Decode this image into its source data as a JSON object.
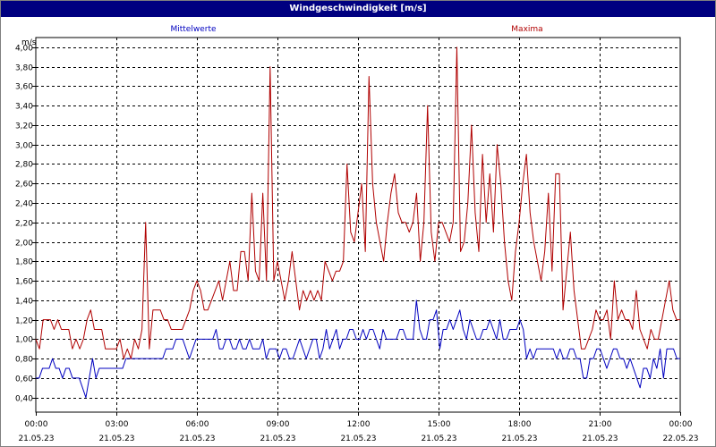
{
  "window": {
    "title": "Windgeschwindigkeit [m/s]"
  },
  "chart_data": {
    "type": "line",
    "title": "Windgeschwindigkeit [m/s]",
    "ylabel": "m/s",
    "ylim": [
      0.25,
      4.1
    ],
    "yticks": [
      "4,00",
      "3,80",
      "3,60",
      "3,40",
      "3,20",
      "3,00",
      "2,80",
      "2,60",
      "2,40",
      "2,20",
      "2,00",
      "1,80",
      "1,60",
      "1,40",
      "1,20",
      "1,00",
      "0,80",
      "0,60",
      "0,40"
    ],
    "xticks": [
      {
        "time": "00:00",
        "date": "21.05.23"
      },
      {
        "time": "03:00",
        "date": "21.05.23"
      },
      {
        "time": "06:00",
        "date": "21.05.23"
      },
      {
        "time": "09:00",
        "date": "21.05.23"
      },
      {
        "time": "12:00",
        "date": "21.05.23"
      },
      {
        "time": "15:00",
        "date": "21.05.23"
      },
      {
        "time": "18:00",
        "date": "21.05.23"
      },
      {
        "time": "21:00",
        "date": "21.05.23"
      },
      {
        "time": "00:00",
        "date": "22.05.23"
      }
    ],
    "grid": true,
    "legend_position": "top",
    "series": [
      {
        "name": "Mittelwerte",
        "color": "#0000c0",
        "values": [
          0.6,
          0.6,
          0.7,
          0.7,
          0.7,
          0.8,
          0.7,
          0.7,
          0.6,
          0.7,
          0.7,
          0.6,
          0.6,
          0.6,
          0.5,
          0.4,
          0.6,
          0.8,
          0.6,
          0.7,
          0.7,
          0.7,
          0.7,
          0.7,
          0.7,
          0.7,
          0.7,
          0.8,
          0.8,
          0.8,
          0.8,
          0.8,
          0.8,
          0.8,
          0.8,
          0.8,
          0.8,
          0.8,
          0.8,
          0.9,
          0.9,
          0.9,
          1.0,
          1.0,
          1.0,
          0.9,
          0.8,
          0.9,
          1.0,
          1.0,
          1.0,
          1.0,
          1.0,
          1.0,
          1.1,
          0.9,
          0.9,
          1.0,
          1.0,
          0.9,
          0.9,
          1.0,
          0.9,
          0.9,
          1.0,
          0.9,
          0.9,
          0.9,
          1.0,
          0.8,
          0.9,
          0.9,
          0.9,
          0.8,
          0.9,
          0.9,
          0.8,
          0.8,
          0.9,
          1.0,
          0.9,
          0.8,
          0.9,
          1.0,
          1.0,
          0.8,
          0.9,
          1.1,
          0.9,
          1.0,
          1.1,
          0.9,
          1.0,
          1.0,
          1.1,
          1.1,
          1.0,
          1.0,
          1.1,
          1.0,
          1.1,
          1.1,
          1.0,
          0.9,
          1.1,
          1.0,
          1.0,
          1.0,
          1.0,
          1.1,
          1.1,
          1.0,
          1.0,
          1.0,
          1.4,
          1.1,
          1.0,
          1.0,
          1.2,
          1.2,
          1.3,
          0.9,
          1.1,
          1.1,
          1.2,
          1.1,
          1.2,
          1.3,
          1.1,
          1.0,
          1.2,
          1.1,
          1.0,
          1.0,
          1.1,
          1.1,
          1.2,
          1.1,
          1.0,
          1.2,
          1.0,
          1.0,
          1.1,
          1.1,
          1.1,
          1.2,
          1.1,
          0.8,
          0.9,
          0.8,
          0.9,
          0.9,
          0.9,
          0.9,
          0.9,
          0.9,
          0.8,
          0.9,
          0.8,
          0.8,
          0.9,
          0.9,
          0.8,
          0.8,
          0.6,
          0.6,
          0.8,
          0.8,
          0.9,
          0.9,
          0.8,
          0.7,
          0.8,
          0.9,
          0.9,
          0.8,
          0.8,
          0.7,
          0.8,
          0.7,
          0.6,
          0.5,
          0.7,
          0.7,
          0.6,
          0.8,
          0.7,
          0.9,
          0.6,
          0.9,
          0.9,
          0.9,
          0.8,
          0.8
        ]
      },
      {
        "name": "Maxima",
        "color": "#b00000",
        "values": [
          1.0,
          0.9,
          1.2,
          1.2,
          1.2,
          1.1,
          1.2,
          1.1,
          1.1,
          1.1,
          0.9,
          1.0,
          0.9,
          1.0,
          1.2,
          1.3,
          1.1,
          1.1,
          1.1,
          0.9,
          0.9,
          0.9,
          0.9,
          1.0,
          0.8,
          0.9,
          0.8,
          1.0,
          0.9,
          1.1,
          2.2,
          0.9,
          1.3,
          1.3,
          1.3,
          1.2,
          1.2,
          1.1,
          1.1,
          1.1,
          1.1,
          1.2,
          1.3,
          1.5,
          1.6,
          1.5,
          1.3,
          1.3,
          1.4,
          1.5,
          1.6,
          1.4,
          1.6,
          1.8,
          1.5,
          1.5,
          1.9,
          1.9,
          1.6,
          2.5,
          1.7,
          1.6,
          2.5,
          1.6,
          3.8,
          1.6,
          1.8,
          1.6,
          1.4,
          1.6,
          1.9,
          1.6,
          1.3,
          1.5,
          1.4,
          1.5,
          1.4,
          1.5,
          1.4,
          1.8,
          1.7,
          1.6,
          1.7,
          1.7,
          1.8,
          2.8,
          2.1,
          2.0,
          2.3,
          2.6,
          1.9,
          3.7,
          2.6,
          2.2,
          2.0,
          1.8,
          2.2,
          2.5,
          2.7,
          2.3,
          2.2,
          2.2,
          2.1,
          2.2,
          2.5,
          1.8,
          2.2,
          3.4,
          2.1,
          1.8,
          2.2,
          2.2,
          2.1,
          2.0,
          2.2,
          4.0,
          1.9,
          2.0,
          2.4,
          3.2,
          2.3,
          1.9,
          2.9,
          2.2,
          2.7,
          2.1,
          3.0,
          2.6,
          2.0,
          1.6,
          1.4,
          1.9,
          2.2,
          2.6,
          2.9,
          2.3,
          2.0,
          1.8,
          1.6,
          1.9,
          2.5,
          1.7,
          2.7,
          2.7,
          1.3,
          1.7,
          2.1,
          1.5,
          1.2,
          0.9,
          0.9,
          1.0,
          1.1,
          1.3,
          1.2,
          1.2,
          1.3,
          1.0,
          1.6,
          1.2,
          1.3,
          1.2,
          1.2,
          1.1,
          1.5,
          1.1,
          1.0,
          0.9,
          1.1,
          1.0,
          1.0,
          1.2,
          1.4,
          1.6,
          1.3,
          1.2,
          1.2
        ]
      }
    ]
  }
}
